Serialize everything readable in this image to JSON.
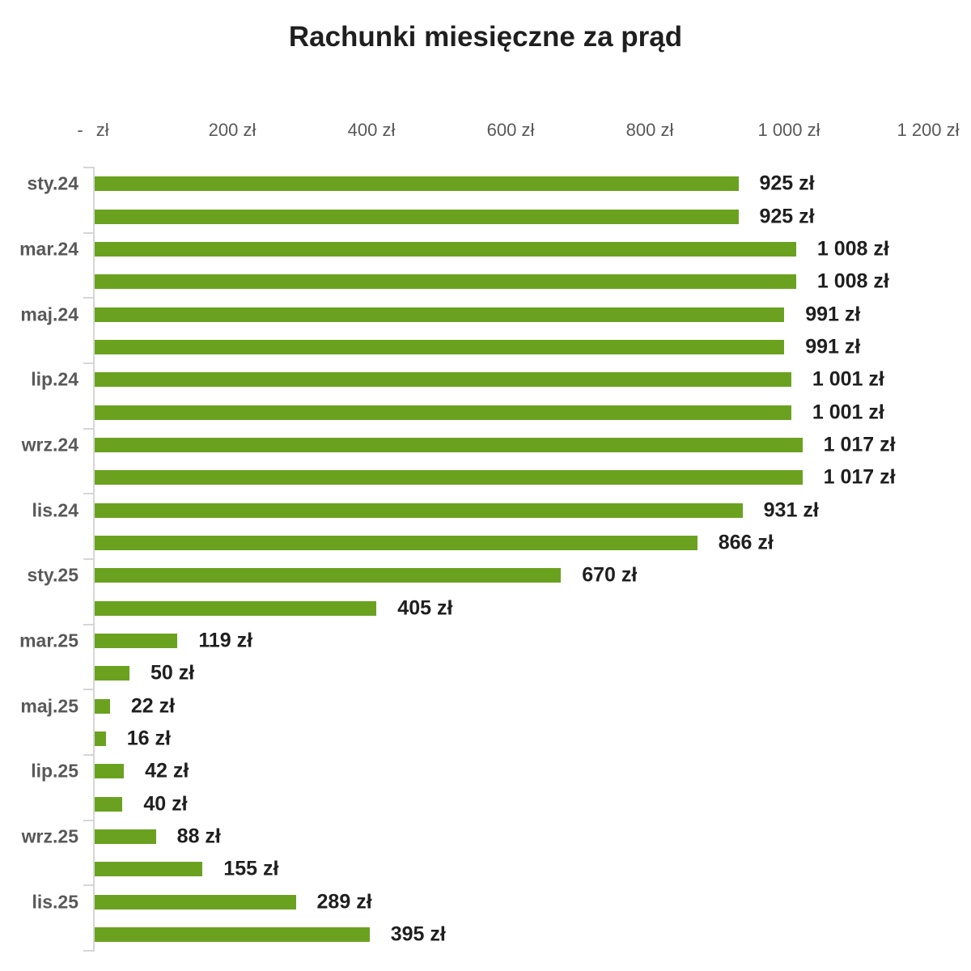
{
  "chart_data": {
    "type": "bar",
    "orientation": "horizontal",
    "title": "Rachunki miesięczne za prąd",
    "xlabel": "",
    "ylabel": "",
    "legend": "none",
    "grid": false,
    "x_axis": {
      "min": 0,
      "max": 1200,
      "tick_step": 200,
      "tick_labels": [
        "- zł",
        "200 zł",
        "400 zł",
        "600 zł",
        "800 zł",
        "1 000 zł",
        "1 200 zł"
      ]
    },
    "y_axis": {
      "label_every_n_bars": 2,
      "visible_tick_labels": [
        "sty.24",
        "mar.24",
        "maj.24",
        "lip.24",
        "wrz.24",
        "lis.24",
        "sty.25",
        "mar.25",
        "maj.25",
        "lip.25",
        "wrz.25",
        "lis.25"
      ]
    },
    "bars": [
      {
        "category_label": "sty.24",
        "value": 925,
        "data_label": "925 zł"
      },
      {
        "category_label": "",
        "value": 925,
        "data_label": "925 zł"
      },
      {
        "category_label": "mar.24",
        "value": 1008,
        "data_label": "1 008 zł"
      },
      {
        "category_label": "",
        "value": 1008,
        "data_label": "1 008 zł"
      },
      {
        "category_label": "maj.24",
        "value": 991,
        "data_label": "991 zł"
      },
      {
        "category_label": "",
        "value": 991,
        "data_label": "991 zł"
      },
      {
        "category_label": "lip.24",
        "value": 1001,
        "data_label": "1 001 zł"
      },
      {
        "category_label": "",
        "value": 1001,
        "data_label": "1 001 zł"
      },
      {
        "category_label": "wrz.24",
        "value": 1017,
        "data_label": "1 017 zł"
      },
      {
        "category_label": "",
        "value": 1017,
        "data_label": "1 017 zł"
      },
      {
        "category_label": "lis.24",
        "value": 931,
        "data_label": "931 zł"
      },
      {
        "category_label": "",
        "value": 866,
        "data_label": "866 zł"
      },
      {
        "category_label": "sty.25",
        "value": 670,
        "data_label": "670 zł"
      },
      {
        "category_label": "",
        "value": 405,
        "data_label": "405 zł"
      },
      {
        "category_label": "mar.25",
        "value": 119,
        "data_label": "119 zł"
      },
      {
        "category_label": "",
        "value": 50,
        "data_label": "50 zł"
      },
      {
        "category_label": "maj.25",
        "value": 22,
        "data_label": "22 zł"
      },
      {
        "category_label": "",
        "value": 16,
        "data_label": "16 zł"
      },
      {
        "category_label": "lip.25",
        "value": 42,
        "data_label": "42 zł"
      },
      {
        "category_label": "",
        "value": 40,
        "data_label": "40 zł"
      },
      {
        "category_label": "wrz.25",
        "value": 88,
        "data_label": "88 zł"
      },
      {
        "category_label": "",
        "value": 155,
        "data_label": "155 zł"
      },
      {
        "category_label": "lis.25",
        "value": 289,
        "data_label": "289 zł"
      },
      {
        "category_label": "",
        "value": 395,
        "data_label": "395 zł"
      }
    ],
    "colors": {
      "bar": "#6aa21f",
      "title": "#1f1f1f",
      "data_label": "#1f1f1f",
      "axis_text": "#595959",
      "axis_line": "#d6d6d6"
    }
  }
}
